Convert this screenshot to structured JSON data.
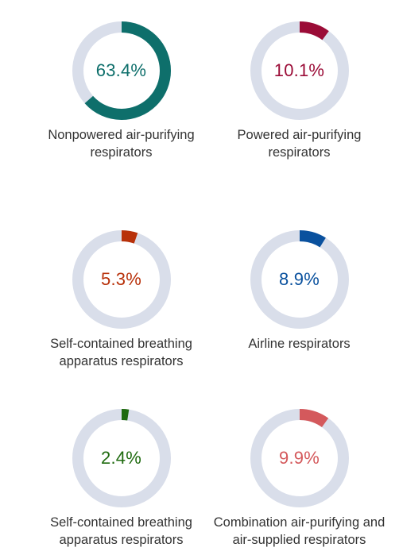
{
  "colors": {
    "track": "#d9deea",
    "label_text": "#333333"
  },
  "chart_data": [
    {
      "type": "pie",
      "variant": "donut",
      "label": "Nonpowered air-purifying respirators",
      "value": 63.4,
      "display": "63.4%",
      "color": "#0e6f6b"
    },
    {
      "type": "pie",
      "variant": "donut",
      "label": "Powered air-purifying respirators",
      "value": 10.1,
      "display": "10.1%",
      "color": "#9b0c37"
    },
    {
      "type": "pie",
      "variant": "donut",
      "label": "Self-contained breathing apparatus respirators",
      "value": 5.3,
      "display": "5.3%",
      "color": "#b8310a"
    },
    {
      "type": "pie",
      "variant": "donut",
      "label": "Airline respirators",
      "value": 8.9,
      "display": "8.9%",
      "color": "#0a519e"
    },
    {
      "type": "pie",
      "variant": "donut",
      "label": "Self-contained breathing apparatus respirators",
      "value": 2.4,
      "display": "2.4%",
      "color": "#1e6a0e"
    },
    {
      "type": "pie",
      "variant": "donut",
      "label": "Combination air-purifying and air-supplied respirators",
      "value": 9.9,
      "display": "9.9%",
      "color": "#d4595c"
    }
  ]
}
